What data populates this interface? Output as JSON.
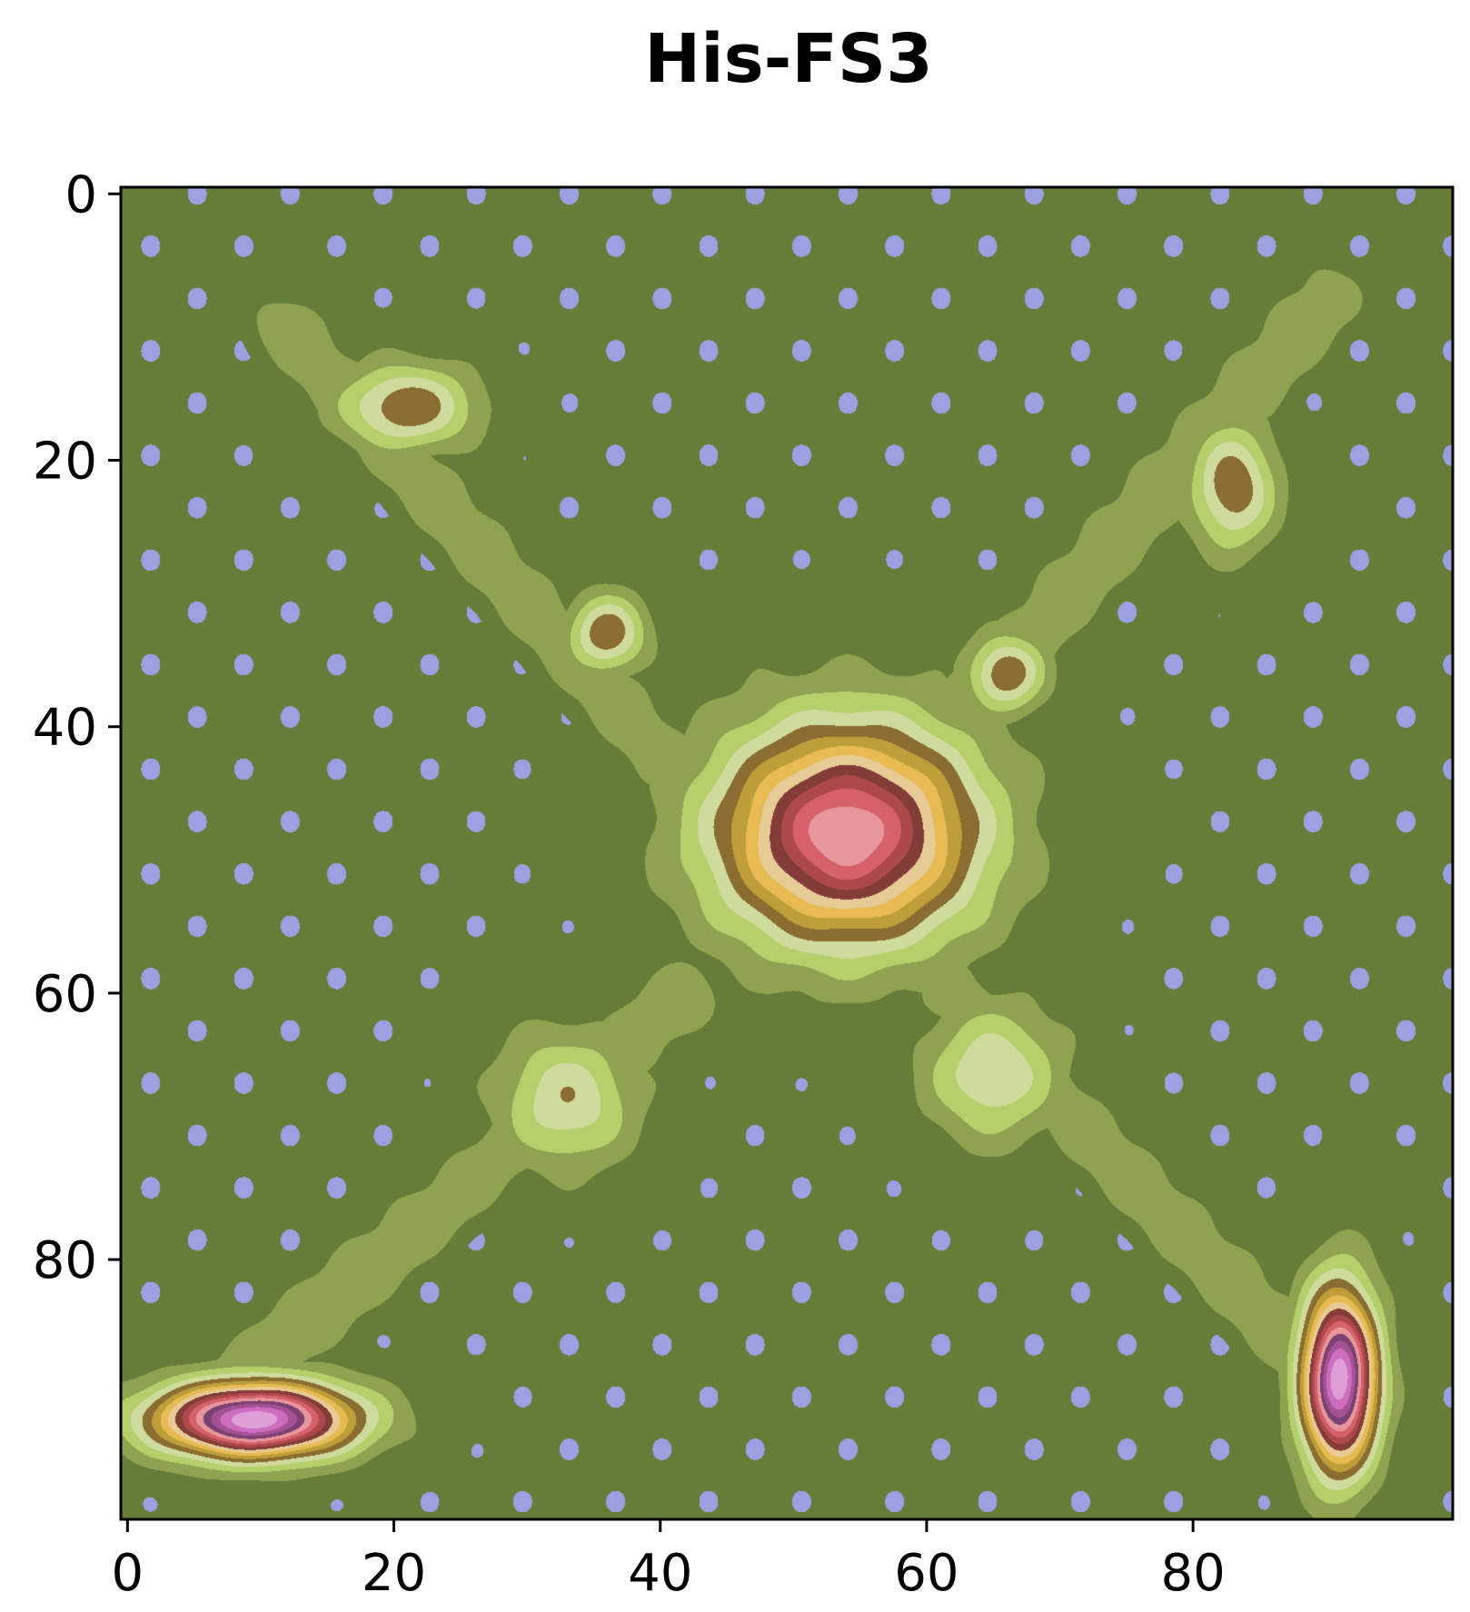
{
  "chart_data": {
    "type": "heatmap",
    "title": "His-FS3",
    "xlabel": "",
    "ylabel": "",
    "xlim": [
      -0.5,
      99.5
    ],
    "ylim": [
      99.5,
      -0.5
    ],
    "y_inverted": true,
    "grid": false,
    "x_ticks": [
      0,
      20,
      40,
      60,
      80
    ],
    "y_ticks": [
      0,
      20,
      40,
      60,
      80
    ],
    "x_tick_labels": [
      "0",
      "20",
      "40",
      "60",
      "80"
    ],
    "y_tick_labels": [
      "0",
      "20",
      "40",
      "60",
      "80"
    ],
    "background_color": "#1f2044",
    "levels": [
      "#1f2044",
      "#3d3f7d",
      "#5155a6",
      "#6b70cc",
      "#9aa0e0",
      "#667d39",
      "#8ea24f",
      "#b5cf6b",
      "#cedb9c",
      "#8c6d31",
      "#bd9e39",
      "#e7ba52",
      "#e7cb94",
      "#843c39",
      "#ad494a",
      "#d6616b",
      "#e7969c",
      "#7b4173",
      "#a55194",
      "#ce6dbd",
      "#de9ed6"
    ],
    "ridges": [
      {
        "name": "upper-left arm",
        "from": [
          12,
          10
        ],
        "to": [
          40,
          42
        ]
      },
      {
        "name": "upper-right arm",
        "from": [
          90,
          8
        ],
        "to": [
          60,
          42
        ]
      },
      {
        "name": "lower-left arm",
        "from": [
          5,
          92
        ],
        "to": [
          42,
          60
        ]
      },
      {
        "name": "lower-right arm",
        "from": [
          93,
          92
        ],
        "to": [
          62,
          60
        ]
      }
    ],
    "peaks": [
      {
        "x": 54,
        "y": 48,
        "sx": 6.5,
        "sy": 5.5,
        "level": 16
      },
      {
        "x": 9.5,
        "y": 92,
        "sx": 5.0,
        "sy": 1.9,
        "level": 20
      },
      {
        "x": 91,
        "y": 89,
        "sx": 1.9,
        "sy": 4.5,
        "level": 20
      },
      {
        "x": 21,
        "y": 16,
        "sx": 3.5,
        "sy": 2.2,
        "level": 9
      },
      {
        "x": 83,
        "y": 22,
        "sx": 2.2,
        "sy": 3.2,
        "level": 9
      },
      {
        "x": 36,
        "y": 33,
        "sx": 2.0,
        "sy": 2.0,
        "level": 9
      },
      {
        "x": 66,
        "y": 36,
        "sx": 2.0,
        "sy": 2.0,
        "level": 9
      },
      {
        "x": 33,
        "y": 68,
        "sx": 3.5,
        "sy": 3.5,
        "level": 8
      },
      {
        "x": 65,
        "y": 66,
        "sx": 3.5,
        "sy": 3.5,
        "level": 8
      }
    ]
  }
}
